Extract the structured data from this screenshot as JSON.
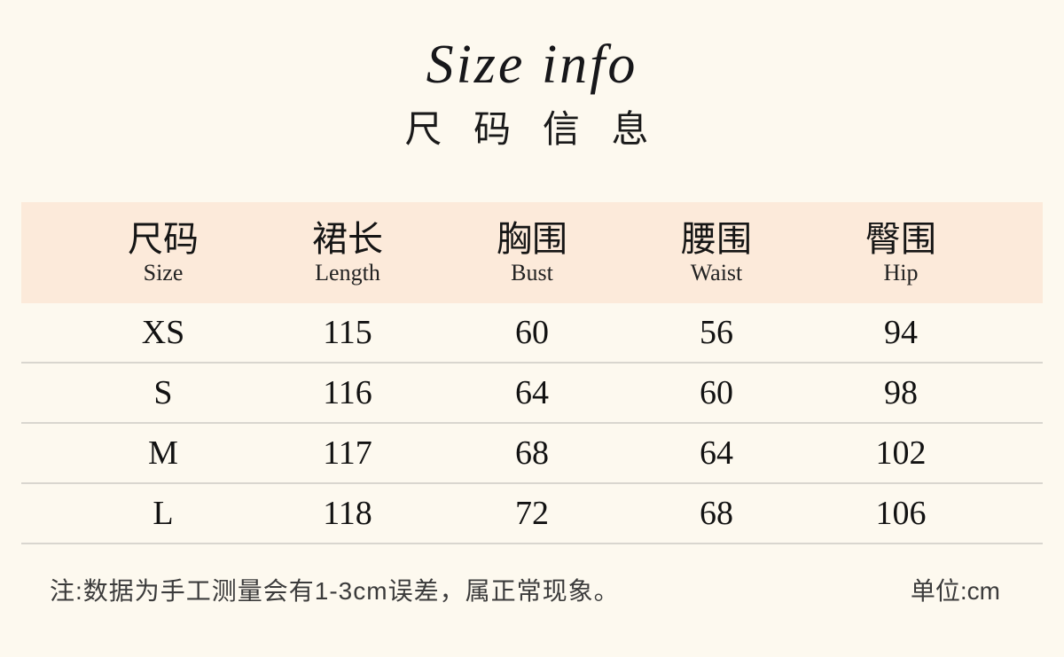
{
  "title": {
    "en": "Size info",
    "zh": "尺 码 信 息"
  },
  "chart_data": {
    "type": "table",
    "title": "Size info 尺码信息",
    "unit": "cm",
    "columns": [
      {
        "zh": "尺码",
        "en": "Size"
      },
      {
        "zh": "裙长",
        "en": "Length"
      },
      {
        "zh": "胸围",
        "en": "Bust"
      },
      {
        "zh": "腰围",
        "en": "Waist"
      },
      {
        "zh": "臀围",
        "en": "Hip"
      }
    ],
    "rows": [
      {
        "cells": [
          "XS",
          "115",
          "60",
          "56",
          "94"
        ]
      },
      {
        "cells": [
          "S",
          "116",
          "64",
          "60",
          "98"
        ]
      },
      {
        "cells": [
          "M",
          "117",
          "68",
          "64",
          "102"
        ]
      },
      {
        "cells": [
          "L",
          "118",
          "72",
          "68",
          "106"
        ]
      }
    ],
    "note": "注:数据为手工测量会有1-3cm误差，属正常现象。",
    "unit_label": "单位:cm"
  },
  "colors": {
    "page_background": "#fdf9ef",
    "header_band": "#fceada",
    "divider": "#d9d6cf",
    "text": "#141414",
    "note_text": "#3b3b3b"
  }
}
